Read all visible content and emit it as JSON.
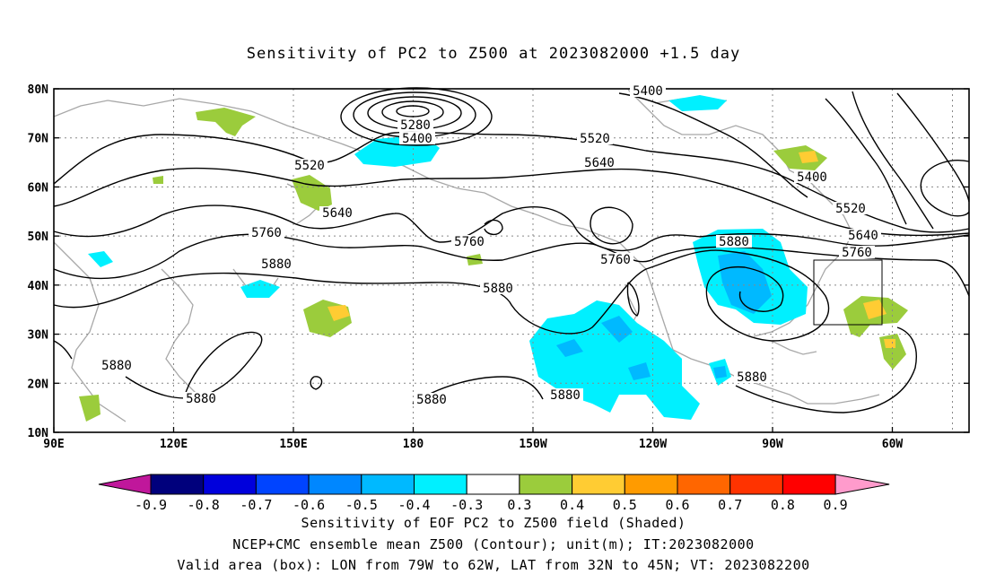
{
  "title": "Sensitivity of PC2 to Z500 at 2023082000 +1.5 day",
  "map": {
    "lat_labels": [
      "80N",
      "70N",
      "60N",
      "50N",
      "40N",
      "30N",
      "20N",
      "10N"
    ],
    "lon_labels": [
      "90E",
      "120E",
      "150E",
      "180",
      "150W",
      "120W",
      "90W",
      "60W"
    ],
    "valid_box": {
      "lon_from": "79W",
      "lon_to": "62W",
      "lat_from": "32N",
      "lat_to": "45N"
    },
    "contour_labels": [
      "5280",
      "5400",
      "5400",
      "5400",
      "5520",
      "5520",
      "5520",
      "5640",
      "5640",
      "5640",
      "5760",
      "5760",
      "5760",
      "5760",
      "5880",
      "5880",
      "5880",
      "5880",
      "5880",
      "5880",
      "5880",
      "5880"
    ]
  },
  "colorbar": {
    "labels": [
      "-0.9",
      "-0.8",
      "-0.7",
      "-0.6",
      "-0.5",
      "-0.4",
      "-0.3",
      "0.3",
      "0.4",
      "0.5",
      "0.6",
      "0.7",
      "0.8",
      "0.9"
    ],
    "colors": {
      "left_tip": "#c0179b",
      "segments": [
        "#00007c",
        "#0000dc",
        "#0044ff",
        "#0087ff",
        "#00b9ff",
        "#00f0ff",
        "#ffffff",
        "#9bcc3c",
        "#ffcc33",
        "#ff9b00",
        "#ff6600",
        "#ff3300",
        "#ff0000"
      ],
      "right_tip": "#ff9bcc"
    }
  },
  "footer": {
    "line1": "Sensitivity of EOF PC2 to Z500 field (Shaded)",
    "line2": "NCEP+CMC ensemble mean Z500 (Contour); unit(m); IT:2023082000",
    "line3": "Valid area (box): LON from 79W to 62W, LAT from 32N to 45N; VT: 2023082200"
  }
}
